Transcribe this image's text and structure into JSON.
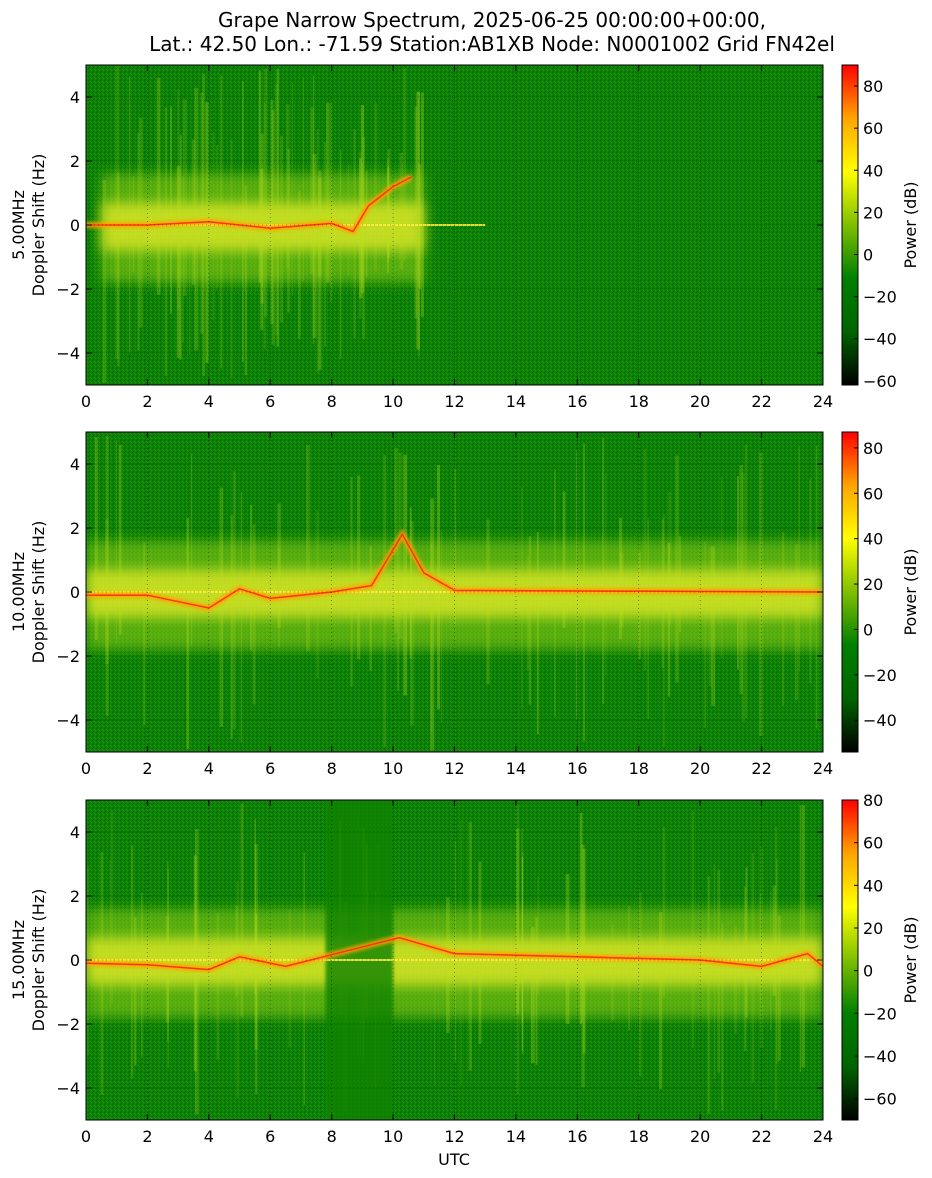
{
  "figure": {
    "title_line1": "Grape Narrow Spectrum, 2025-06-25 00:00:00+00:00,",
    "title_line2": "Lat.: 42.50 Lon.: -71.59 Station:AB1XB Node: N0001002 Grid FN42el",
    "xlabel": "UTC"
  },
  "colormap": [
    "#000000",
    "#006400",
    "#008000",
    "#7fbf00",
    "#ffff00",
    "#ffa500",
    "#ff0000"
  ],
  "chart_data": [
    {
      "type": "heatmap",
      "freq_label": "5.00MHz",
      "ylabel": "Doppler Shift (Hz)",
      "colorbar_label": "Power (dB)",
      "xlim": [
        0,
        24
      ],
      "ylim": [
        -5,
        5
      ],
      "xticks": [
        0,
        2,
        4,
        6,
        8,
        10,
        12,
        14,
        16,
        18,
        20,
        22,
        24
      ],
      "yticks": [
        -4,
        -2,
        0,
        2,
        4
      ],
      "clim": [
        -62,
        90
      ],
      "cticks": [
        -60,
        -40,
        -20,
        0,
        20,
        40,
        60,
        80
      ],
      "grid": true,
      "features": {
        "active_window_utc": [
          0.5,
          11
        ],
        "trace": [
          [
            0,
            0
          ],
          [
            2,
            0
          ],
          [
            4,
            0.1
          ],
          [
            6,
            -0.1
          ],
          [
            8,
            0.05
          ],
          [
            8.7,
            -0.2
          ],
          [
            9.2,
            0.6
          ],
          [
            10,
            1.2
          ],
          [
            10.6,
            1.5
          ]
        ],
        "carrier_line_until_utc": 13
      }
    },
    {
      "type": "heatmap",
      "freq_label": "10.00MHz",
      "ylabel": "Doppler Shift (Hz)",
      "colorbar_label": "Power (dB)",
      "xlim": [
        0,
        24
      ],
      "ylim": [
        -5,
        5
      ],
      "xticks": [
        0,
        2,
        4,
        6,
        8,
        10,
        12,
        14,
        16,
        18,
        20,
        22,
        24
      ],
      "yticks": [
        -4,
        -2,
        0,
        2,
        4
      ],
      "clim": [
        -54,
        87
      ],
      "cticks": [
        -40,
        -20,
        0,
        20,
        40,
        60,
        80
      ],
      "grid": true,
      "features": {
        "active_window_utc": [
          0,
          24
        ],
        "trace": [
          [
            0,
            -0.1
          ],
          [
            2,
            -0.1
          ],
          [
            4,
            -0.5
          ],
          [
            5,
            0.1
          ],
          [
            6,
            -0.2
          ],
          [
            8,
            0
          ],
          [
            9.3,
            0.2
          ],
          [
            10.3,
            1.8
          ],
          [
            11,
            0.6
          ],
          [
            12,
            0.05
          ],
          [
            24,
            0
          ]
        ],
        "carrier_line_until_utc": 24
      }
    },
    {
      "type": "heatmap",
      "freq_label": "15.00MHz",
      "ylabel": "Doppler Shift (Hz)",
      "colorbar_label": "Power (dB)",
      "xlim": [
        0,
        24
      ],
      "ylim": [
        -5,
        5
      ],
      "xticks": [
        0,
        2,
        4,
        6,
        8,
        10,
        12,
        14,
        16,
        18,
        20,
        22,
        24
      ],
      "yticks": [
        -4,
        -2,
        0,
        2,
        4
      ],
      "clim": [
        -70,
        80
      ],
      "cticks": [
        -60,
        -40,
        -20,
        0,
        20,
        40,
        60,
        80
      ],
      "grid": true,
      "features": {
        "active_window_utc": [
          0,
          24
        ],
        "gap_utc": [
          7.8,
          10
        ],
        "trace": [
          [
            0,
            -0.1
          ],
          [
            2,
            -0.15
          ],
          [
            4,
            -0.3
          ],
          [
            5,
            0.1
          ],
          [
            6.5,
            -0.2
          ],
          [
            10.2,
            0.7
          ],
          [
            12,
            0.2
          ],
          [
            16,
            0.1
          ],
          [
            20,
            0
          ],
          [
            22,
            -0.2
          ],
          [
            23.5,
            0.2
          ],
          [
            24,
            -0.2
          ]
        ],
        "carrier_line_until_utc": 24
      }
    }
  ]
}
